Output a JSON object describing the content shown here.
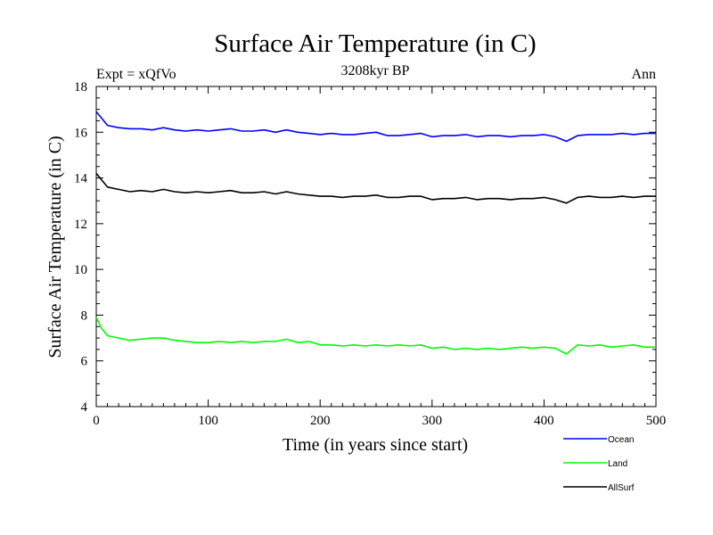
{
  "chart_data": {
    "type": "line",
    "title": "Surface Air Temperature (in C)",
    "subtitle": "3208kyr BP",
    "left_note": "Expt = xQfVo",
    "right_note": "Ann",
    "xlabel": "Time (in years since start)",
    "ylabel": "Surface Air Temperature (in C)",
    "xlim": [
      0,
      500
    ],
    "ylim": [
      4,
      18
    ],
    "x_ticks": [
      "0",
      "100",
      "200",
      "300",
      "400",
      "500"
    ],
    "y_ticks": [
      "4",
      "6",
      "8",
      "10",
      "12",
      "14",
      "16",
      "18"
    ],
    "legend_position": "bottom-right",
    "series": [
      {
        "name": "Ocean",
        "color": "#0000ff",
        "x": [
          0,
          5,
          10,
          20,
          30,
          40,
          50,
          60,
          70,
          80,
          90,
          100,
          110,
          120,
          130,
          140,
          150,
          160,
          170,
          180,
          190,
          200,
          210,
          220,
          230,
          240,
          250,
          260,
          270,
          280,
          290,
          300,
          310,
          320,
          330,
          340,
          350,
          360,
          370,
          380,
          390,
          400,
          410,
          420,
          430,
          440,
          450,
          460,
          470,
          480,
          490,
          500
        ],
        "values": [
          16.9,
          16.6,
          16.3,
          16.2,
          16.15,
          16.15,
          16.1,
          16.2,
          16.1,
          16.05,
          16.1,
          16.05,
          16.1,
          16.15,
          16.05,
          16.05,
          16.1,
          16.0,
          16.1,
          16.0,
          15.95,
          15.9,
          15.95,
          15.9,
          15.9,
          15.95,
          16.0,
          15.85,
          15.85,
          15.9,
          15.95,
          15.8,
          15.85,
          15.85,
          15.9,
          15.8,
          15.85,
          15.85,
          15.8,
          15.85,
          15.85,
          15.9,
          15.8,
          15.6,
          15.85,
          15.9,
          15.9,
          15.9,
          15.95,
          15.9,
          15.95,
          15.95
        ]
      },
      {
        "name": "Land",
        "color": "#00ff00",
        "x": [
          0,
          5,
          10,
          20,
          30,
          40,
          50,
          60,
          70,
          80,
          90,
          100,
          110,
          120,
          130,
          140,
          150,
          160,
          170,
          180,
          190,
          200,
          210,
          220,
          230,
          240,
          250,
          260,
          270,
          280,
          290,
          300,
          310,
          320,
          330,
          340,
          350,
          360,
          370,
          380,
          390,
          400,
          410,
          420,
          430,
          440,
          450,
          460,
          470,
          480,
          490,
          500
        ],
        "values": [
          7.9,
          7.4,
          7.1,
          7.0,
          6.9,
          6.95,
          7.0,
          7.0,
          6.9,
          6.85,
          6.8,
          6.8,
          6.85,
          6.8,
          6.85,
          6.8,
          6.85,
          6.85,
          6.95,
          6.8,
          6.85,
          6.7,
          6.7,
          6.65,
          6.7,
          6.65,
          6.7,
          6.65,
          6.7,
          6.65,
          6.7,
          6.55,
          6.6,
          6.5,
          6.55,
          6.5,
          6.55,
          6.5,
          6.55,
          6.6,
          6.55,
          6.6,
          6.55,
          6.3,
          6.7,
          6.65,
          6.7,
          6.6,
          6.65,
          6.7,
          6.6,
          6.6
        ]
      },
      {
        "name": "AllSurf",
        "color": "#000000",
        "x": [
          0,
          5,
          10,
          20,
          30,
          40,
          50,
          60,
          70,
          80,
          90,
          100,
          110,
          120,
          130,
          140,
          150,
          160,
          170,
          180,
          190,
          200,
          210,
          220,
          230,
          240,
          250,
          260,
          270,
          280,
          290,
          300,
          310,
          320,
          330,
          340,
          350,
          360,
          370,
          380,
          390,
          400,
          410,
          420,
          430,
          440,
          450,
          460,
          470,
          480,
          490,
          500
        ],
        "values": [
          14.2,
          13.9,
          13.6,
          13.5,
          13.4,
          13.45,
          13.4,
          13.5,
          13.4,
          13.35,
          13.4,
          13.35,
          13.4,
          13.45,
          13.35,
          13.35,
          13.4,
          13.3,
          13.4,
          13.3,
          13.25,
          13.2,
          13.2,
          13.15,
          13.2,
          13.2,
          13.25,
          13.15,
          13.15,
          13.2,
          13.2,
          13.05,
          13.1,
          13.1,
          13.15,
          13.05,
          13.1,
          13.1,
          13.05,
          13.1,
          13.1,
          13.15,
          13.05,
          12.9,
          13.15,
          13.2,
          13.15,
          13.15,
          13.2,
          13.15,
          13.2,
          13.2
        ]
      }
    ]
  }
}
